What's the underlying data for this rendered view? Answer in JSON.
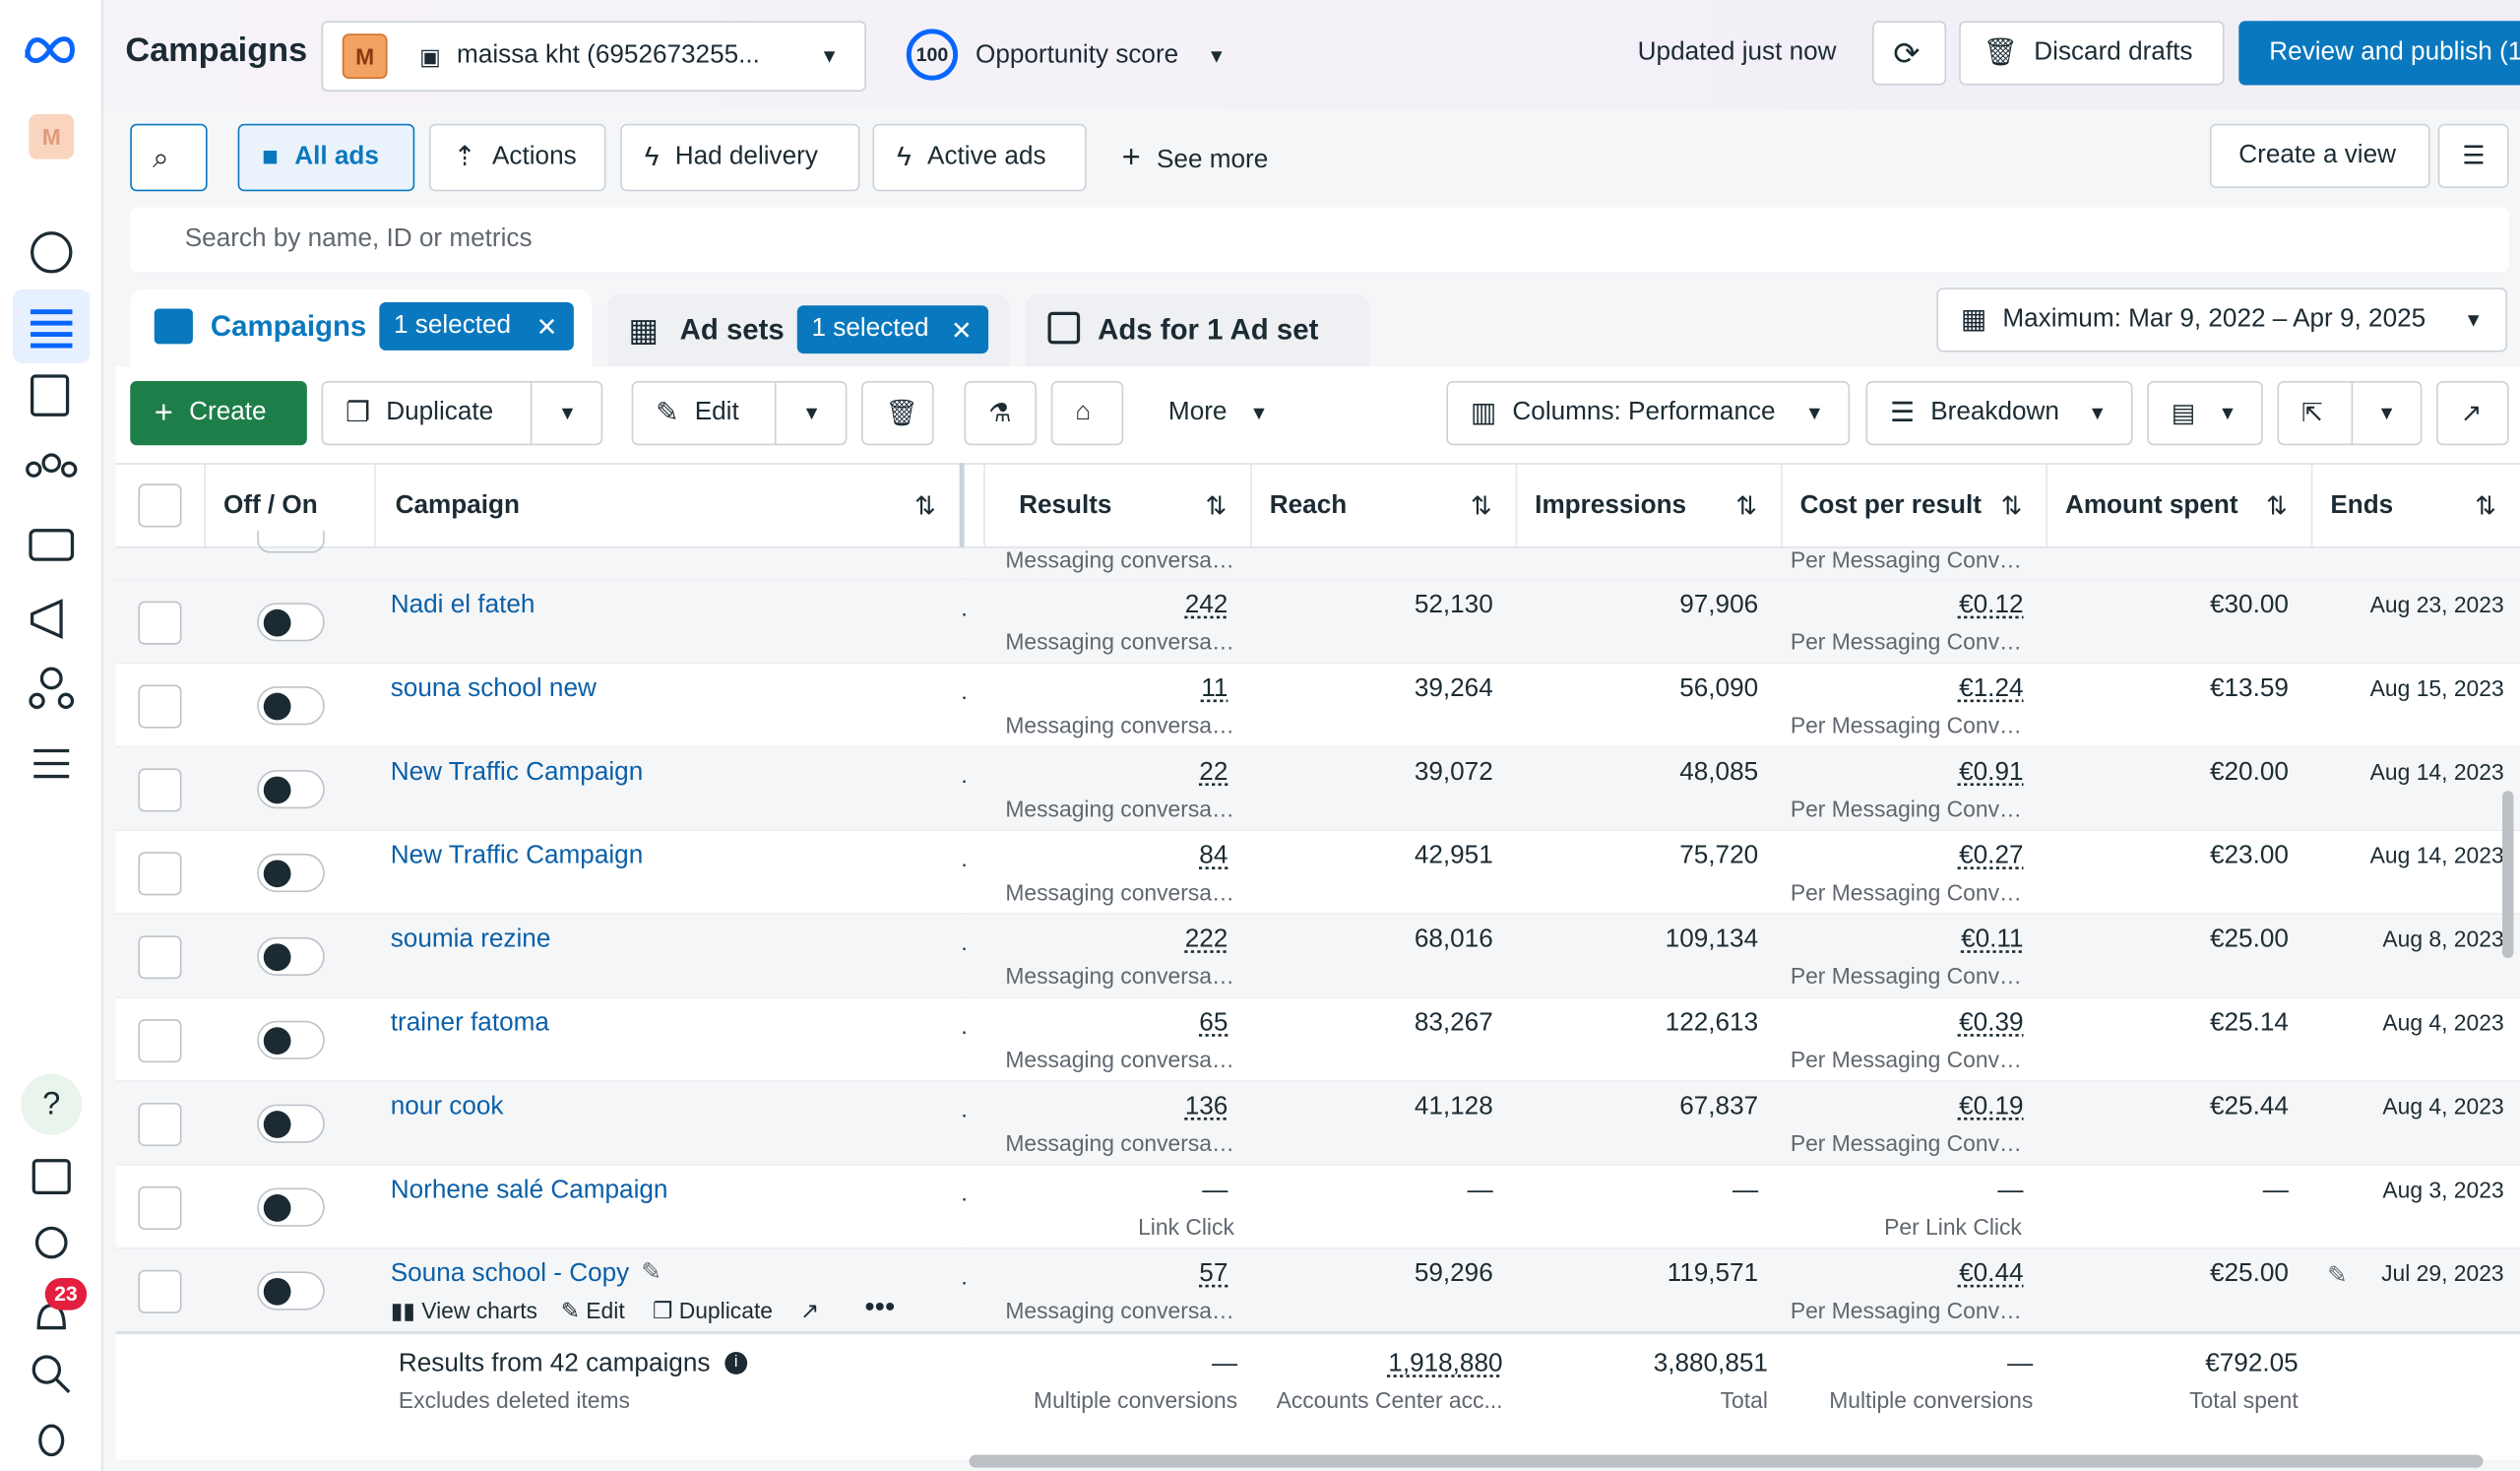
{
  "sidebar": {
    "avatar": "M",
    "badge": "23"
  },
  "header": {
    "title": "Campaigns",
    "account_initial": "M",
    "account": "maissa kht (6952673255...",
    "score": "100",
    "score_label": "Opportunity score",
    "updated": "Updated just now",
    "discard": "Discard drafts",
    "publish": "Review and publish (1"
  },
  "filters": {
    "all_ads": "All ads",
    "actions": "Actions",
    "had_delivery": "Had delivery",
    "active_ads": "Active ads",
    "see_more": "See more",
    "create_view": "Create a view"
  },
  "search_placeholder": "Search by name, ID or metrics",
  "tabs": [
    {
      "label": "Campaigns",
      "selected": "1 selected"
    },
    {
      "label": "Ad sets",
      "selected": "1 selected"
    },
    {
      "label": "Ads for 1 Ad set"
    }
  ],
  "date_range": "Maximum: Mar 9, 2022 – Apr 9, 2025",
  "toolbar": {
    "create": "Create",
    "duplicate": "Duplicate",
    "edit": "Edit",
    "more": "More",
    "columns": "Columns: Performance",
    "breakdown": "Breakdown"
  },
  "table": {
    "columns": [
      "Off / On",
      "Campaign",
      "Results",
      "Reach",
      "Impressions",
      "Cost per result",
      "Amount spent",
      "Ends"
    ],
    "partial_row": {
      "results_label": "Messaging conversa…",
      "cost_label": "Per Messaging Conv…"
    },
    "rows": [
      {
        "name": "Nadi el fateh",
        "results": "242",
        "results_label": "Messaging conversa…",
        "reach": "52,130",
        "impressions": "97,906",
        "cost": "€0.12",
        "cost_label": "Per Messaging Conv…",
        "amount": "€30.00",
        "ends": "Aug 23, 2023"
      },
      {
        "name": "souna school new",
        "results": "11",
        "results_label": "Messaging conversa…",
        "reach": "39,264",
        "impressions": "56,090",
        "cost": "€1.24",
        "cost_label": "Per Messaging Conv…",
        "amount": "€13.59",
        "ends": "Aug 15, 2023"
      },
      {
        "name": "New Traffic Campaign",
        "results": "22",
        "results_label": "Messaging conversa…",
        "reach": "39,072",
        "impressions": "48,085",
        "cost": "€0.91",
        "cost_label": "Per Messaging Conv…",
        "amount": "€20.00",
        "ends": "Aug 14, 2023"
      },
      {
        "name": "New Traffic Campaign",
        "results": "84",
        "results_label": "Messaging conversa…",
        "reach": "42,951",
        "impressions": "75,720",
        "cost": "€0.27",
        "cost_label": "Per Messaging Conv…",
        "amount": "€23.00",
        "ends": "Aug 14, 2023"
      },
      {
        "name": "soumia rezine",
        "results": "222",
        "results_label": "Messaging conversa…",
        "reach": "68,016",
        "impressions": "109,134",
        "cost": "€0.11",
        "cost_label": "Per Messaging Conv…",
        "amount": "€25.00",
        "ends": "Aug 8, 2023"
      },
      {
        "name": "trainer fatoma",
        "results": "65",
        "results_label": "Messaging conversa…",
        "reach": "83,267",
        "impressions": "122,613",
        "cost": "€0.39",
        "cost_label": "Per Messaging Conv…",
        "amount": "€25.14",
        "ends": "Aug 4, 2023"
      },
      {
        "name": "nour cook",
        "results": "136",
        "results_label": "Messaging conversa…",
        "reach": "41,128",
        "impressions": "67,837",
        "cost": "€0.19",
        "cost_label": "Per Messaging Conv…",
        "amount": "€25.44",
        "ends": "Aug 4, 2023"
      },
      {
        "name": "Norhene salé Campaign",
        "results": "—",
        "results_label": "Link Click",
        "reach": "—",
        "impressions": "—",
        "cost": "—",
        "cost_label": "Per Link Click",
        "amount": "—",
        "ends": "Aug 3, 2023"
      },
      {
        "name": "Souna school - Copy",
        "results": "57",
        "results_label": "Messaging conversa…",
        "reach": "59,296",
        "impressions": "119,571",
        "cost": "€0.44",
        "cost_label": "Per Messaging Conv…",
        "amount": "€25.00",
        "ends": "Jul 29, 2023"
      }
    ],
    "row_actions": [
      "View charts",
      "Edit",
      "Duplicate"
    ],
    "footer": {
      "title": "Results from 42 campaigns",
      "subtitle": "Excludes deleted items",
      "results": "—",
      "results_label": "Multiple conversions",
      "reach": "1,918,880",
      "reach_label": "Accounts Center acc...",
      "impressions": "3,880,851",
      "impressions_label": "Total",
      "cost": "—",
      "cost_label": "Multiple conversions",
      "amount": "€792.05",
      "amount_label": "Total spent"
    }
  }
}
